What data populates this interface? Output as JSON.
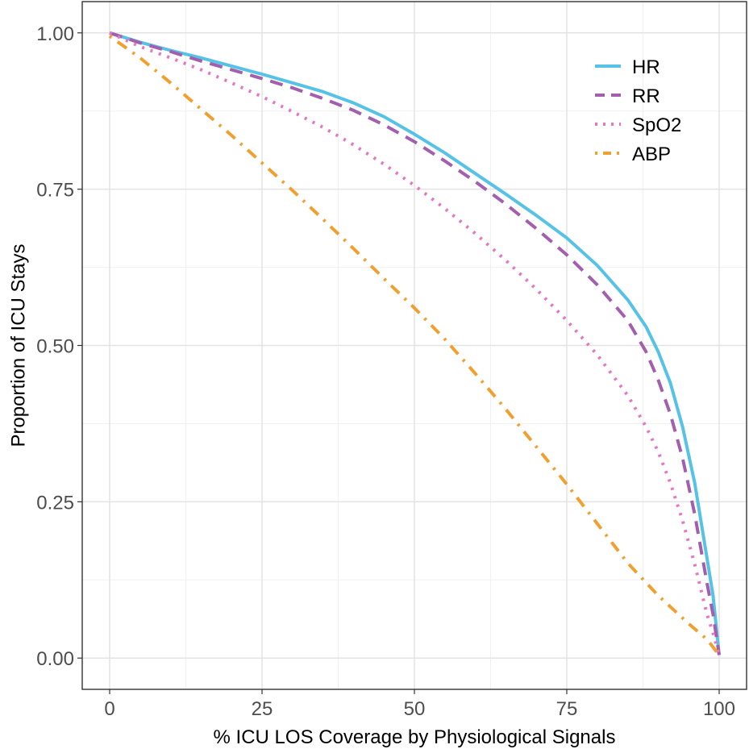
{
  "chart_data": {
    "type": "line",
    "xlabel": "% ICU LOS Coverage by Physiological Signals",
    "ylabel": "Proportion of ICU Stays",
    "xlim": [
      -4.5,
      104.5
    ],
    "ylim": [
      -0.05,
      1.05
    ],
    "x_ticks": [
      0,
      25,
      50,
      75,
      100
    ],
    "x_tick_labels": [
      "0",
      "25",
      "50",
      "75",
      "100"
    ],
    "y_ticks": [
      0,
      0.25,
      0.5,
      0.75,
      1.0
    ],
    "y_tick_labels": [
      "0.00",
      "0.25",
      "0.50",
      "0.75",
      "1.00"
    ],
    "grid": true,
    "legend_position": "top-right",
    "series": [
      {
        "name": "HR",
        "color": "#56c2e6",
        "dash": "solid",
        "x": [
          0,
          5,
          10,
          15,
          20,
          25,
          30,
          35,
          40,
          45,
          50,
          55,
          60,
          65,
          70,
          75,
          80,
          85,
          88,
          90,
          92,
          94,
          96,
          98,
          99,
          100
        ],
        "y": [
          1.0,
          0.985,
          0.972,
          0.96,
          0.947,
          0.934,
          0.92,
          0.906,
          0.888,
          0.866,
          0.838,
          0.808,
          0.775,
          0.742,
          0.708,
          0.672,
          0.628,
          0.573,
          0.53,
          0.49,
          0.44,
          0.37,
          0.28,
          0.16,
          0.1,
          0.005
        ]
      },
      {
        "name": "RR",
        "color": "#a35fae",
        "dash": "dashed",
        "x": [
          0,
          5,
          10,
          15,
          20,
          25,
          30,
          35,
          40,
          45,
          50,
          55,
          60,
          65,
          70,
          75,
          80,
          85,
          88,
          90,
          92,
          94,
          96,
          98,
          99,
          100
        ],
        "y": [
          1.0,
          0.984,
          0.97,
          0.955,
          0.941,
          0.927,
          0.912,
          0.895,
          0.876,
          0.853,
          0.826,
          0.795,
          0.762,
          0.726,
          0.687,
          0.645,
          0.597,
          0.54,
          0.49,
          0.445,
          0.39,
          0.32,
          0.23,
          0.12,
          0.07,
          0.005
        ]
      },
      {
        "name": "SpO2",
        "color": "#e377c2",
        "dash": "dotted",
        "x": [
          0,
          5,
          10,
          15,
          20,
          25,
          30,
          35,
          40,
          45,
          50,
          55,
          60,
          65,
          70,
          75,
          80,
          85,
          88,
          90,
          92,
          94,
          96,
          98,
          99,
          100
        ],
        "y": [
          1.0,
          0.978,
          0.96,
          0.941,
          0.92,
          0.898,
          0.874,
          0.849,
          0.821,
          0.79,
          0.756,
          0.719,
          0.679,
          0.636,
          0.59,
          0.54,
          0.485,
          0.42,
          0.37,
          0.33,
          0.28,
          0.22,
          0.15,
          0.07,
          0.04,
          0.005
        ]
      },
      {
        "name": "ABP",
        "color": "#f0a030",
        "dash": "dotdash",
        "x": [
          0,
          5,
          10,
          15,
          20,
          25,
          30,
          35,
          40,
          45,
          50,
          55,
          60,
          65,
          70,
          75,
          80,
          85,
          90,
          95,
          98,
          100
        ],
        "y": [
          0.995,
          0.96,
          0.92,
          0.878,
          0.836,
          0.792,
          0.748,
          0.702,
          0.655,
          0.607,
          0.56,
          0.51,
          0.455,
          0.398,
          0.338,
          0.278,
          0.215,
          0.152,
          0.1,
          0.055,
          0.03,
          0.005
        ]
      }
    ]
  }
}
